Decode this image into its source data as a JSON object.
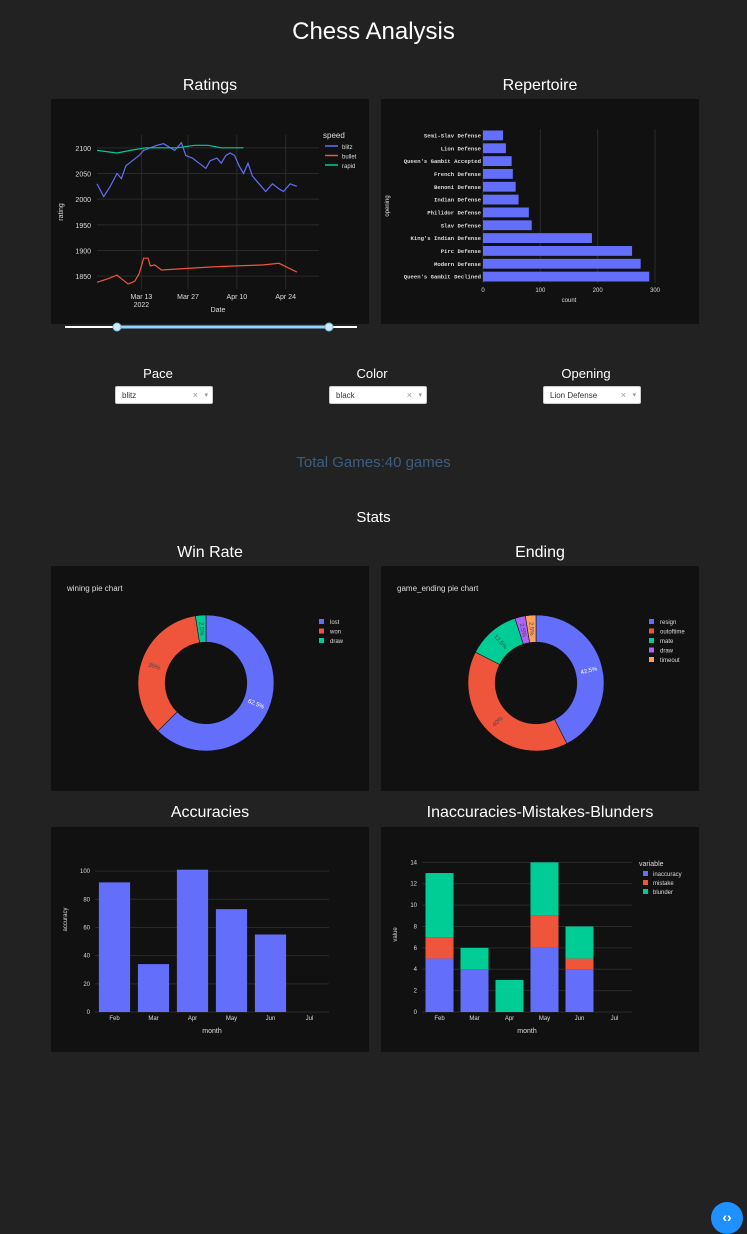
{
  "app": {
    "title": "Chess Analysis"
  },
  "sections": {
    "ratings": "Ratings",
    "repertoire": "Repertoire",
    "win_rate": "Win Rate",
    "ending": "Ending",
    "accuracies": "Accuracies",
    "imb": "Inaccuracies-Mistakes-Blunders",
    "stats": "Stats"
  },
  "controls": {
    "pace": {
      "label": "Pace",
      "value": "blitz"
    },
    "color": {
      "label": "Color",
      "value": "black"
    },
    "opening": {
      "label": "Opening",
      "value": "Lion Defense"
    },
    "clear_glyph": "×",
    "arrow_glyph": "▾"
  },
  "total_games": "Total Games:40 games",
  "code_button": "‹›",
  "colors": {
    "blue": "#636efa",
    "red": "#ef553b",
    "green": "#00cc96",
    "purple": "#ab63fa",
    "orange": "#ffa15a"
  },
  "chart_data": [
    {
      "id": "ratings",
      "type": "line",
      "xlabel": "Date",
      "ylabel": "rating",
      "legend_title": "speed",
      "legend_position": "top-right",
      "ylim": [
        1825,
        2125
      ],
      "yticks": [
        1850,
        1900,
        1950,
        2000,
        2050,
        2100
      ],
      "xticks": [
        {
          "t": 0.2,
          "label": "Mar 13",
          "sub": "2022"
        },
        {
          "t": 0.41,
          "label": "Mar 27",
          "sub": ""
        },
        {
          "t": 0.63,
          "label": "Apr 10",
          "sub": ""
        },
        {
          "t": 0.85,
          "label": "Apr 24",
          "sub": ""
        }
      ],
      "series": [
        {
          "name": "blitz",
          "color": "#636efa",
          "points": [
            [
              0.0,
              2030
            ],
            [
              0.03,
              2005
            ],
            [
              0.06,
              2025
            ],
            [
              0.09,
              2050
            ],
            [
              0.11,
              2040
            ],
            [
              0.13,
              2065
            ],
            [
              0.16,
              2075
            ],
            [
              0.19,
              2085
            ],
            [
              0.21,
              2095
            ],
            [
              0.24,
              2100
            ],
            [
              0.27,
              2105
            ],
            [
              0.3,
              2108
            ],
            [
              0.33,
              2100
            ],
            [
              0.35,
              2095
            ],
            [
              0.38,
              2110
            ],
            [
              0.4,
              2085
            ],
            [
              0.43,
              2080
            ],
            [
              0.46,
              2070
            ],
            [
              0.49,
              2060
            ],
            [
              0.51,
              2075
            ],
            [
              0.54,
              2080
            ],
            [
              0.56,
              2070
            ],
            [
              0.58,
              2085
            ],
            [
              0.6,
              2090
            ],
            [
              0.62,
              2085
            ],
            [
              0.64,
              2065
            ],
            [
              0.66,
              2050
            ],
            [
              0.68,
              2070
            ],
            [
              0.7,
              2045
            ],
            [
              0.73,
              2030
            ],
            [
              0.76,
              2015
            ],
            [
              0.79,
              2030
            ],
            [
              0.82,
              2020
            ],
            [
              0.84,
              2015
            ],
            [
              0.87,
              2030
            ],
            [
              0.9,
              2025
            ]
          ]
        },
        {
          "name": "bullet",
          "color": "#ef553b",
          "points": [
            [
              0.0,
              1838
            ],
            [
              0.05,
              1845
            ],
            [
              0.09,
              1852
            ],
            [
              0.11,
              1845
            ],
            [
              0.14,
              1835
            ],
            [
              0.17,
              1840
            ],
            [
              0.19,
              1855
            ],
            [
              0.21,
              1885
            ],
            [
              0.23,
              1885
            ],
            [
              0.24,
              1870
            ],
            [
              0.26,
              1872
            ],
            [
              0.29,
              1862
            ],
            [
              0.4,
              1865
            ],
            [
              0.52,
              1868
            ],
            [
              0.63,
              1870
            ],
            [
              0.75,
              1872
            ],
            [
              0.82,
              1875
            ],
            [
              0.9,
              1858
            ]
          ]
        },
        {
          "name": "rapid",
          "color": "#00cc96",
          "points": [
            [
              0.0,
              2095
            ],
            [
              0.09,
              2090
            ],
            [
              0.15,
              2095
            ],
            [
              0.22,
              2100
            ],
            [
              0.3,
              2100
            ],
            [
              0.36,
              2100
            ],
            [
              0.44,
              2105
            ],
            [
              0.5,
              2105
            ],
            [
              0.56,
              2100
            ],
            [
              0.66,
              2100
            ]
          ]
        }
      ]
    },
    {
      "id": "repertoire",
      "type": "bar",
      "orientation": "horizontal",
      "xlabel": "count",
      "ylabel": "opening",
      "xlim": [
        0,
        300
      ],
      "xticks": [
        0,
        100,
        200,
        300
      ],
      "categories": [
        "Semi-Slav Defense",
        "Lion Defense",
        "Queen's Gambit Accepted",
        "French Defense",
        "Benoni Defense",
        "Indian Defense",
        "Philidor Defense",
        "Slav Defense",
        "King's Indian Defense",
        "Pirc Defense",
        "Modern Defense",
        "Queen's Gambit Declined"
      ],
      "values": [
        35,
        40,
        50,
        52,
        57,
        62,
        80,
        85,
        190,
        260,
        275,
        290
      ]
    },
    {
      "id": "win-rate",
      "type": "pie",
      "title": "wining pie chart",
      "hole": 0.6,
      "legend_position": "top-right",
      "labels": [
        "lost",
        "won",
        "draw"
      ],
      "values": [
        62.5,
        35,
        2.5
      ],
      "slice_labels": [
        "62.5%",
        "35%",
        "2.5%"
      ],
      "colors": [
        "#636efa",
        "#ef553b",
        "#00cc96"
      ]
    },
    {
      "id": "ending",
      "type": "pie",
      "title": "game_ending pie chart",
      "hole": 0.6,
      "legend_position": "top-right",
      "labels": [
        "resign",
        "outoftime",
        "mate",
        "draw",
        "timeout"
      ],
      "values": [
        42.5,
        40,
        12.5,
        2.5,
        2.5
      ],
      "slice_labels": [
        "42.5%",
        "40%",
        "12.5%",
        "2.5%",
        "2.5%"
      ],
      "colors": [
        "#636efa",
        "#ef553b",
        "#00cc96",
        "#ab63fa",
        "#ffa15a"
      ]
    },
    {
      "id": "accuracies",
      "type": "bar",
      "xlabel": "month",
      "ylabel": "accuracy",
      "ylim": [
        0,
        110
      ],
      "yticks": [
        0,
        20,
        40,
        60,
        80,
        100
      ],
      "categories": [
        "Feb",
        "Mar",
        "Apr",
        "May",
        "Jun",
        "Jul"
      ],
      "values": [
        92,
        34,
        101,
        73,
        55,
        0
      ],
      "color": "#636efa"
    },
    {
      "id": "imb",
      "type": "bar",
      "stacked": true,
      "xlabel": "month",
      "ylabel": "value",
      "legend_title": "variable",
      "legend_position": "top-right",
      "ylim": [
        0,
        14.5
      ],
      "yticks": [
        0,
        2,
        4,
        6,
        8,
        10,
        12,
        14
      ],
      "categories": [
        "Feb",
        "Mar",
        "Apr",
        "May",
        "Jun",
        "Jul"
      ],
      "series": [
        {
          "name": "inaccuracy",
          "color": "#636efa",
          "values": [
            5,
            4,
            0,
            6,
            4,
            0
          ]
        },
        {
          "name": "mistake",
          "color": "#ef553b",
          "values": [
            2,
            0,
            0,
            3,
            1,
            0
          ]
        },
        {
          "name": "blunder",
          "color": "#00cc96",
          "values": [
            6,
            2,
            3,
            5,
            3,
            0
          ]
        }
      ]
    }
  ]
}
